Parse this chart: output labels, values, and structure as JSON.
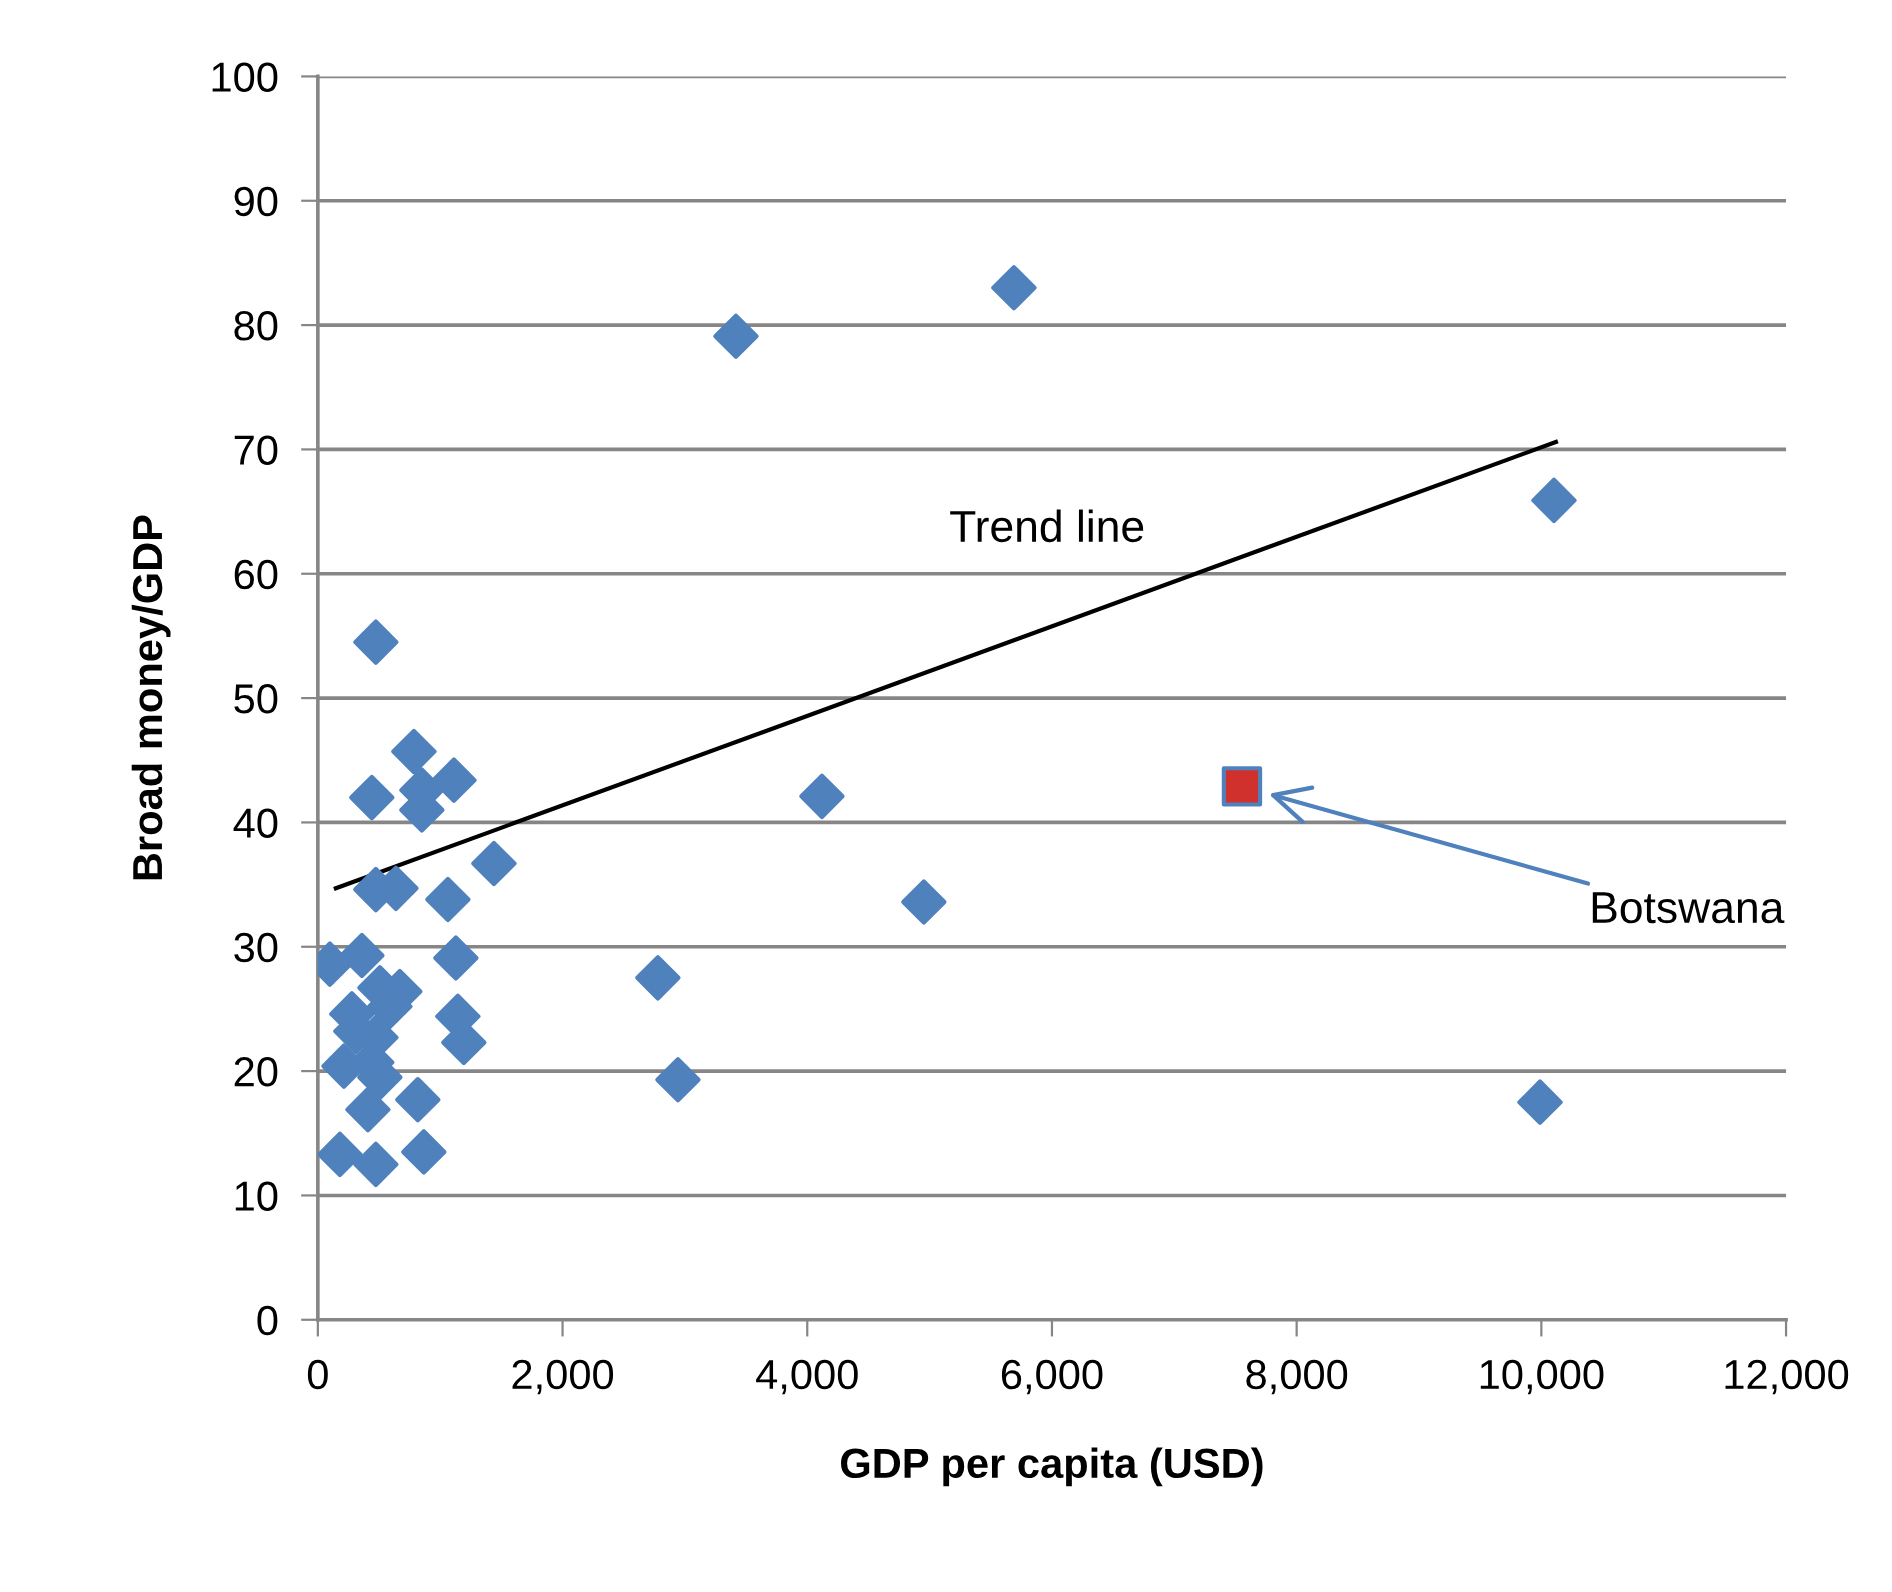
{
  "chart_data": {
    "type": "scatter",
    "xlabel": "GDP per capita (USD)",
    "ylabel": "Broad money/GDP",
    "xlim": [
      0,
      12000
    ],
    "ylim": [
      0,
      100
    ],
    "xticks": [
      0,
      {
        "value": 2000,
        "label": "2,000"
      },
      {
        "value": 4000,
        "label": "4,000"
      },
      {
        "value": 6000,
        "label": "6,000"
      },
      {
        "value": 8000,
        "label": "8,000"
      },
      {
        "value": 10000,
        "label": "10,000"
      },
      {
        "value": 12000,
        "label": "12,000"
      }
    ],
    "yticks": [
      0,
      10,
      20,
      30,
      40,
      50,
      60,
      70,
      80,
      90,
      100
    ],
    "grid": "y",
    "series": [
      {
        "marker": "diamond",
        "color": "#4f81bd",
        "x": [
          474,
          785,
          1112,
          850,
          850,
          441,
          1439,
          474,
          638,
          1063,
          98,
          360,
          1128,
          507,
          670,
          588,
          278,
          311,
          474,
          1144,
          1193,
          213,
          441,
          507,
          409,
          817,
          180,
          474,
          866,
          3417,
          5689,
          10103,
          4120,
          4953,
          2779,
          2943,
          9989
        ],
        "values": [
          54.5,
          45.7,
          43.4,
          42.6,
          41.0,
          42.0,
          36.7,
          34.6,
          34.7,
          33.8,
          28.6,
          29.3,
          29.1,
          26.7,
          26.4,
          25.2,
          24.6,
          23.2,
          22.7,
          24.4,
          22.3,
          20.4,
          20.7,
          19.5,
          16.9,
          17.7,
          13.3,
          12.5,
          13.5,
          79.1,
          83.0,
          65.9,
          42.1,
          33.6,
          27.5,
          19.3,
          17.5
        ]
      },
      {
        "marker": "square",
        "color": "#d0312d",
        "x": [
          7553
        ],
        "values": [
          42.9
        ]
      },
      {
        "type": "line",
        "marker": "none",
        "color": "#000000",
        "x": [
          147,
          10119
        ],
        "values": [
          34.7,
          70.6
        ]
      }
    ],
    "annotations": [
      "Trend line",
      "Botswana"
    ]
  }
}
